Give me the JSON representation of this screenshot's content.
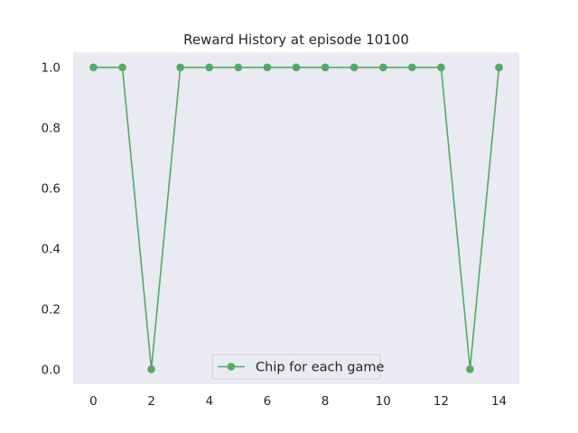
{
  "chart_data": {
    "type": "line",
    "title": "Reward History at episode 10100",
    "xlabel": "",
    "ylabel": "",
    "x": [
      0,
      1,
      2,
      3,
      4,
      5,
      6,
      7,
      8,
      9,
      10,
      11,
      12,
      13,
      14
    ],
    "series": [
      {
        "name": "Chip for each game",
        "color": "#55a868",
        "marker": "circle",
        "values": [
          1.0,
          1.0,
          0.0,
          1.0,
          1.0,
          1.0,
          1.0,
          1.0,
          1.0,
          1.0,
          1.0,
          1.0,
          1.0,
          0.0,
          1.0
        ]
      }
    ],
    "xlim": [
      -0.7,
      14.7
    ],
    "ylim": [
      -0.05,
      1.05
    ],
    "x_ticks": [
      0,
      2,
      4,
      6,
      8,
      10,
      12,
      14
    ],
    "x_tick_labels": [
      "0",
      "2",
      "4",
      "6",
      "8",
      "10",
      "12",
      "14"
    ],
    "y_ticks": [
      0.0,
      0.2,
      0.4,
      0.6,
      0.8,
      1.0
    ],
    "y_tick_labels": [
      "0.0",
      "0.2",
      "0.4",
      "0.6",
      "0.8",
      "1.0"
    ],
    "grid": false,
    "legend_position": "lower center",
    "background_color": "#eaeaf2"
  }
}
